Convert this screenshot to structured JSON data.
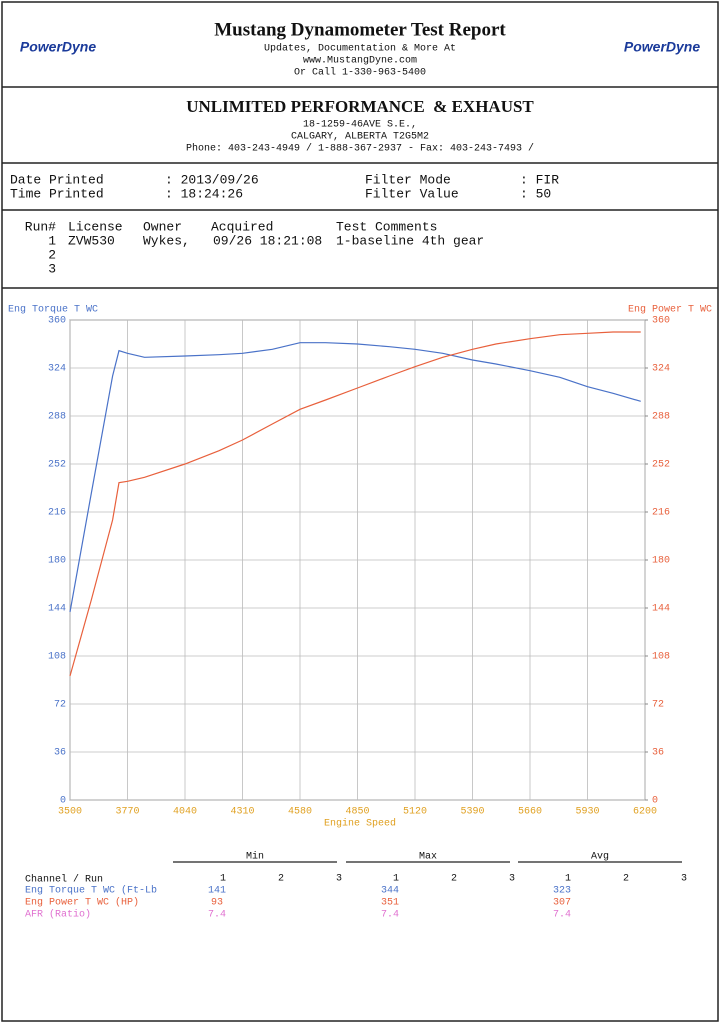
{
  "header": {
    "title": "Mustang Dynamometer Test Report",
    "lines": [
      "Updates, Documentation & More At",
      "www.MustangDyne.com",
      "Or Call 1-330-963-5400"
    ],
    "logo": "PowerDyne"
  },
  "shop": {
    "name": "UNLIMITED PERFORMANCE  & EXHAUST",
    "lines": [
      "18-1259-46AVE S.E.,",
      "CALGARY, ALBERTA  T2G5M2",
      "Phone: 403-243-4949 / 1-888-367-2937 - Fax: 403-243-7493 /"
    ]
  },
  "info": {
    "rows": [
      [
        "Date Printed",
        ": 2013/09/26",
        "Filter Mode",
        ": FIR"
      ],
      [
        "Time Printed",
        ": 18:24:26",
        "Filter Value",
        ": 50"
      ]
    ]
  },
  "runs": {
    "header": [
      "Run#",
      "License",
      "Owner",
      "Acquired",
      "Test Comments"
    ],
    "rows": [
      [
        "1",
        "ZVW530",
        "Wykes,",
        "09/26 18:21:08",
        "1-baseline 4th gear"
      ],
      [
        "2"
      ],
      [
        "3"
      ]
    ]
  },
  "chart_data": {
    "type": "line",
    "x_label": "Engine Speed",
    "x": [
      3500,
      3600,
      3700,
      3730,
      3770,
      3850,
      4040,
      4200,
      4310,
      4450,
      4580,
      4700,
      4850,
      5000,
      5120,
      5250,
      5390,
      5500,
      5660,
      5800,
      5930,
      6050,
      6180
    ],
    "xlim": [
      3500,
      6200
    ],
    "xticks": [
      3500,
      3770,
      4040,
      4310,
      4580,
      4850,
      5120,
      5390,
      5660,
      5930,
      6200
    ],
    "ylim": [
      0,
      360
    ],
    "yticks": [
      0,
      36,
      72,
      108,
      144,
      180,
      216,
      252,
      288,
      324,
      360
    ],
    "y2lim": [
      0,
      360
    ],
    "y2ticks": [
      0,
      36,
      72,
      108,
      144,
      180,
      216,
      252,
      288,
      324,
      360
    ],
    "grid": true,
    "series": [
      {
        "name": "Eng Torque T WC",
        "color": "#4a72c8",
        "values": [
          141,
          230,
          318,
          337,
          335,
          332,
          333,
          334,
          335,
          338,
          343,
          343,
          342,
          340,
          338,
          335,
          330,
          327,
          322,
          317,
          310,
          305,
          299
        ]
      },
      {
        "name": "Eng Power T WC",
        "color": "#e8603c",
        "axis": "y2",
        "values": [
          93,
          150,
          210,
          238,
          239,
          242,
          252,
          262,
          270,
          282,
          293,
          300,
          309,
          318,
          325,
          332,
          338,
          342,
          346,
          349,
          350,
          351,
          351
        ]
      }
    ]
  },
  "summary": {
    "groups": [
      "Min",
      "Max",
      "Avg"
    ],
    "label": "Channel / Run",
    "runs": [
      "1",
      "2",
      "3"
    ],
    "rows": [
      {
        "channel": "Eng Torque T WC (Ft-Lb",
        "color": "#4a72c8",
        "values": [
          141,
          344,
          323
        ]
      },
      {
        "channel": "Eng Power T WC (HP)",
        "color": "#e8603c",
        "values": [
          93,
          351,
          307
        ]
      },
      {
        "channel": "AFR (Ratio)",
        "color": "#e070d0",
        "values": [
          7.4,
          7.4,
          7.4
        ]
      }
    ]
  }
}
